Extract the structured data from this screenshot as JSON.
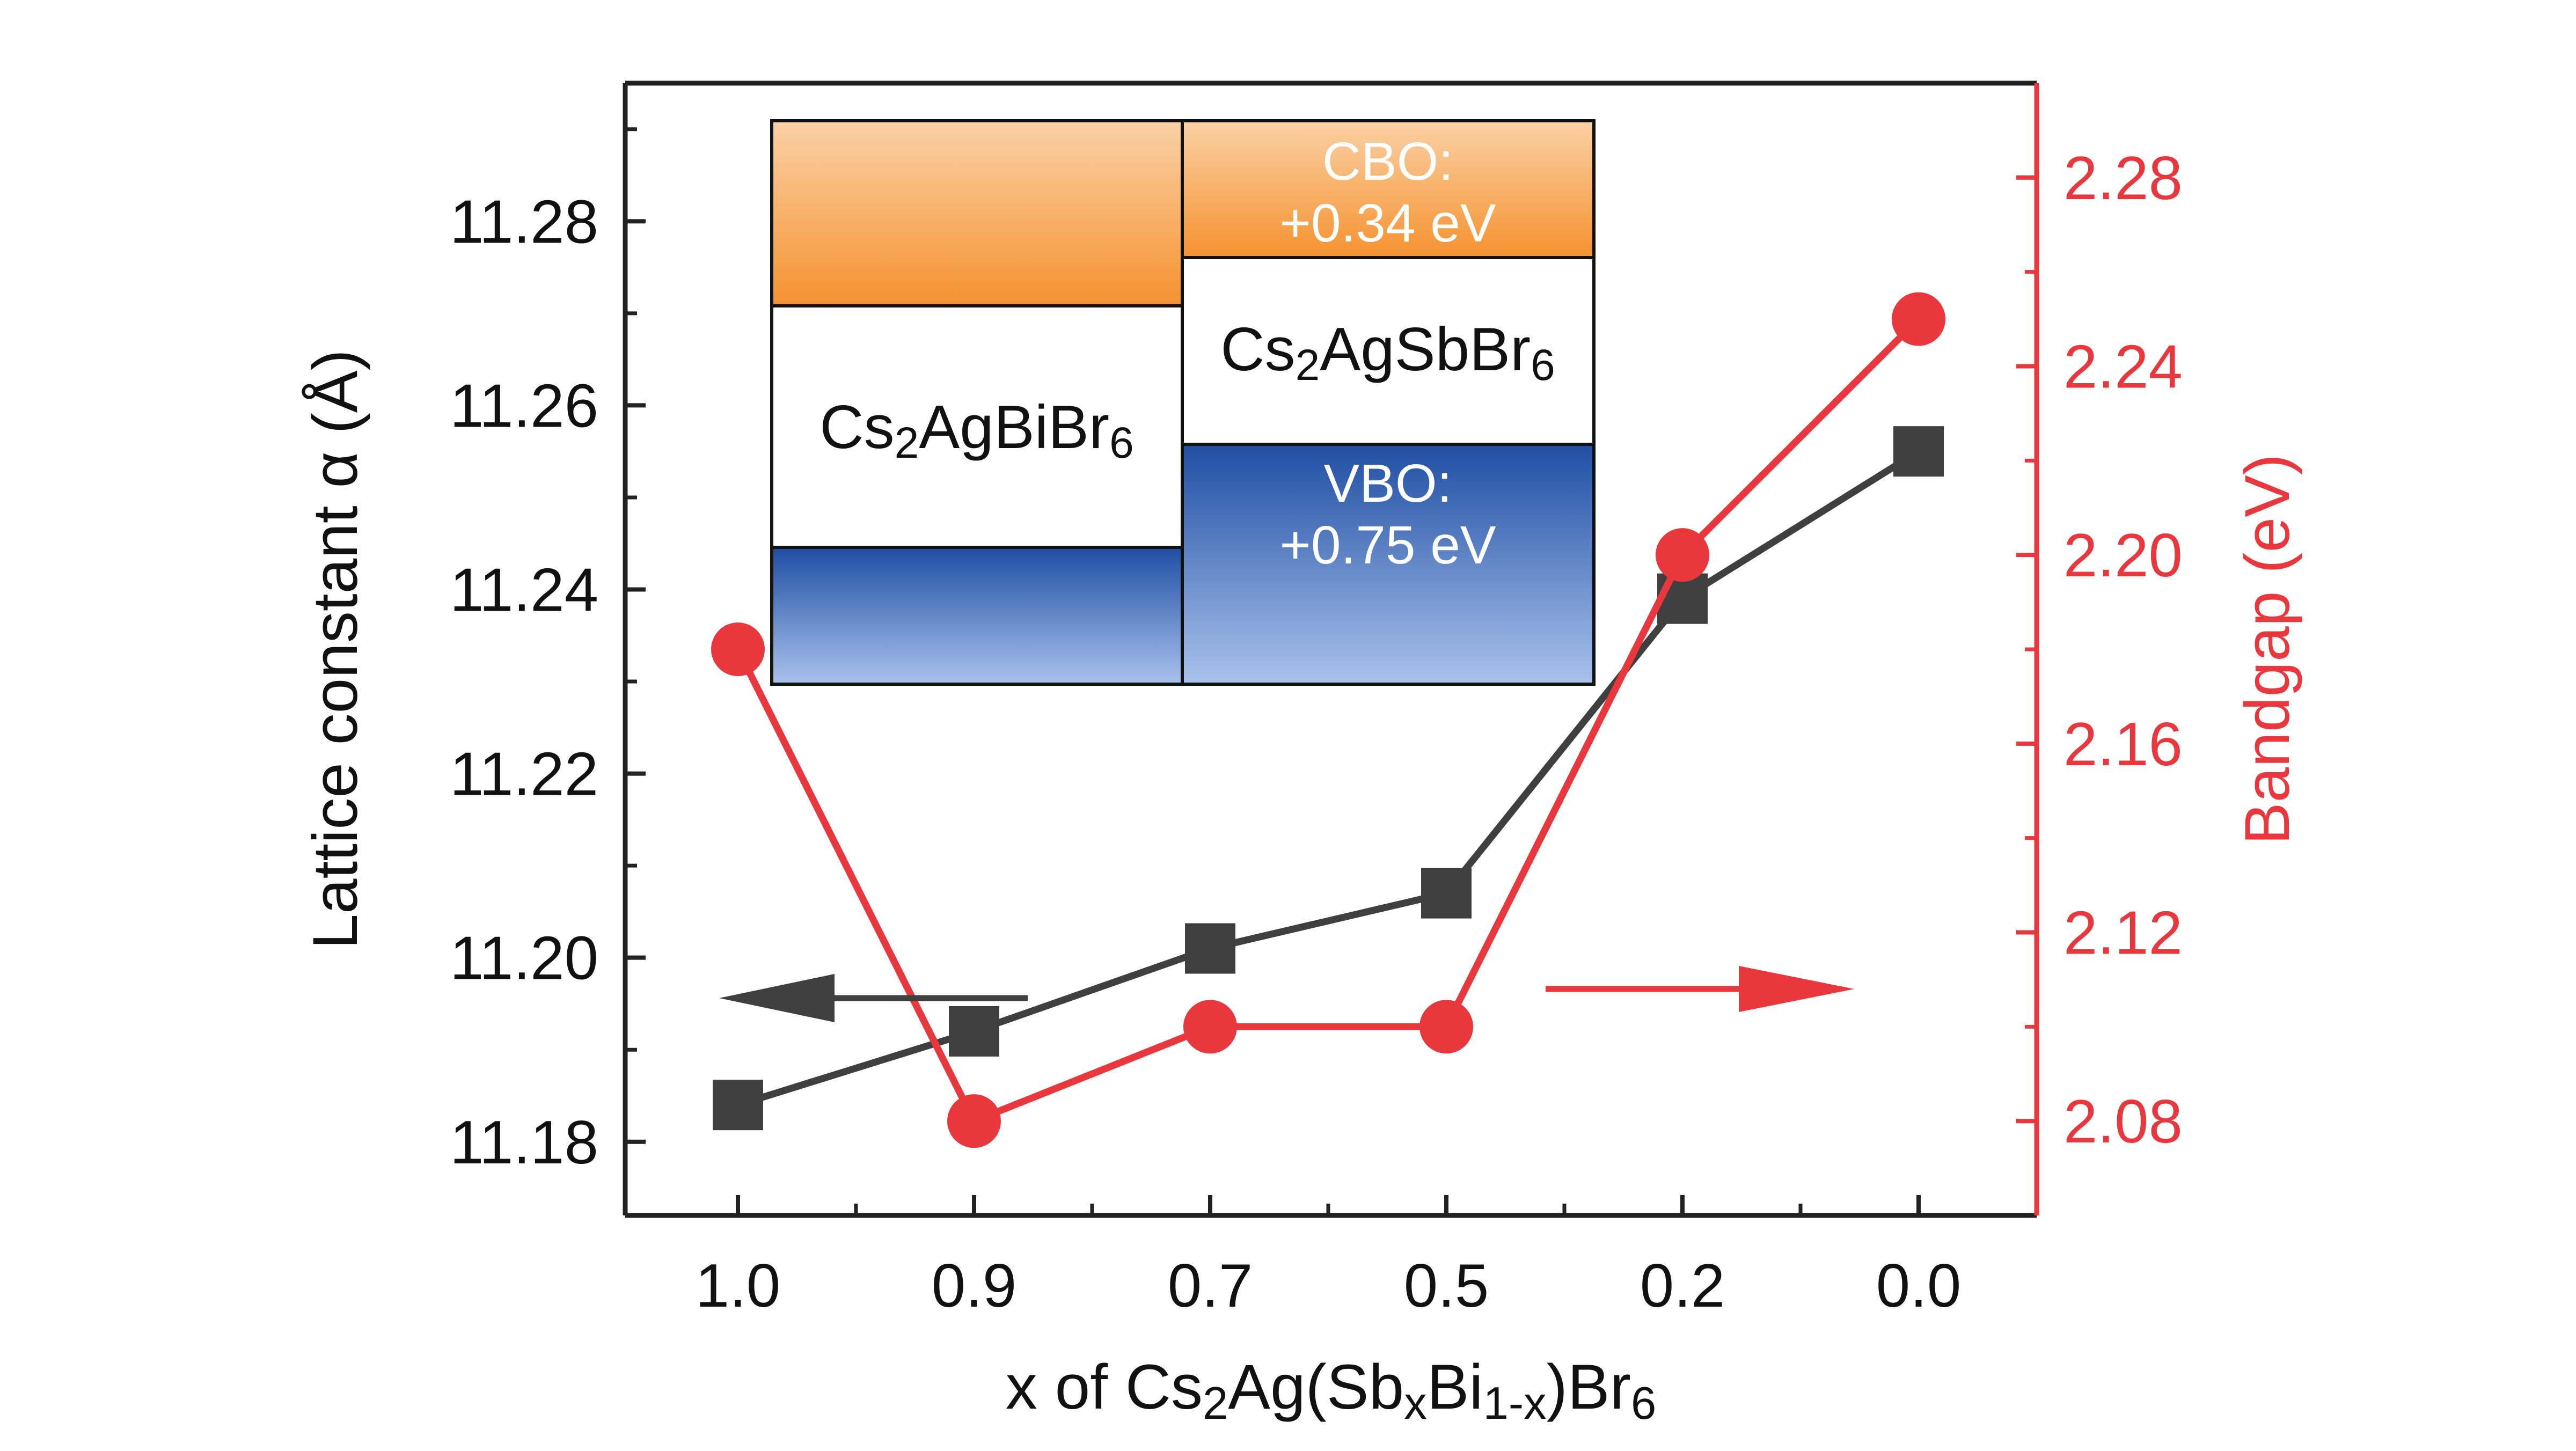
{
  "chart_data": {
    "type": "line",
    "categories": [
      "1.0",
      "0.9",
      "0.7",
      "0.5",
      "0.2",
      "0.0"
    ],
    "xlabel": {
      "parts": [
        {
          "t": "x of Cs"
        },
        {
          "t": "2",
          "sub": true
        },
        {
          "t": "Ag(Sb"
        },
        {
          "t": "x",
          "sub": true
        },
        {
          "t": "Bi"
        },
        {
          "t": "1-x",
          "sub": true
        },
        {
          "t": ")Br"
        },
        {
          "t": "6",
          "sub": true
        }
      ]
    },
    "y_left": {
      "label": "Lattice constant α (Å)",
      "ylim": [
        11.172,
        11.295
      ],
      "ticks": [
        11.18,
        11.2,
        11.22,
        11.24,
        11.26,
        11.28
      ],
      "tick_labels": [
        "11.18",
        "11.20",
        "11.22",
        "11.24",
        "11.26",
        "11.28"
      ]
    },
    "y_right": {
      "label": "Bandgap (eV)",
      "ylim": [
        2.06,
        2.3
      ],
      "ticks": [
        2.08,
        2.12,
        2.16,
        2.2,
        2.24,
        2.28
      ],
      "tick_labels": [
        "2.08",
        "2.12",
        "2.16",
        "2.20",
        "2.24",
        "2.28"
      ]
    },
    "series": [
      {
        "axis": "left",
        "marker": "square",
        "color": "#3f3f3f",
        "values": [
          11.184,
          11.192,
          11.201,
          11.207,
          11.239,
          11.255
        ]
      },
      {
        "axis": "right",
        "marker": "circle",
        "color": "#e8373d",
        "values": [
          2.18,
          2.08,
          2.1,
          2.1,
          2.2,
          2.25
        ]
      }
    ],
    "annotations": {
      "left_arrow_color": "#3f3f3f",
      "right_arrow_color": "#e8373d"
    },
    "grid": false,
    "legend": "none"
  },
  "inset": {
    "left_material": [
      {
        "t": "Cs"
      },
      {
        "t": "2",
        "sub": true
      },
      {
        "t": "AgBiBr"
      },
      {
        "t": "6",
        "sub": true
      }
    ],
    "right_material": [
      {
        "t": "Cs"
      },
      {
        "t": "2",
        "sub": true
      },
      {
        "t": "AgSbBr"
      },
      {
        "t": "6",
        "sub": true
      }
    ],
    "cbo_label": "CBO:",
    "cbo_value": "+0.34 eV",
    "vbo_label": "VBO:",
    "vbo_value": "+0.75 eV",
    "conduction_color": "#f5922f",
    "valence_color": "#1f4ea3"
  }
}
